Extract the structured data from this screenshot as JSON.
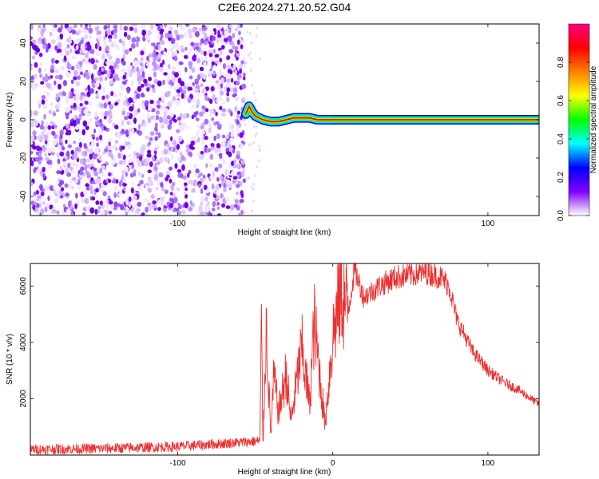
{
  "figure_title": "C2E6.2024.271.20.52.G04",
  "chart_data": [
    {
      "type": "heatmap",
      "name": "spectrogram",
      "xlabel": "Height of straight line (km)",
      "ylabel": "Frequency (Hz)",
      "xlim": [
        -195,
        133
      ],
      "ylim": [
        -50,
        50
      ],
      "x_ticks": [
        -100,
        100
      ],
      "y_ticks": [
        -40,
        -20,
        0,
        20,
        40
      ],
      "noise_region_x": [
        -195,
        -57
      ],
      "signal_start_x": -56,
      "carrier_frequency_hz": 0,
      "signal_trace": [
        {
          "x": -56,
          "y": 3
        },
        {
          "x": -54,
          "y": 7
        },
        {
          "x": -52,
          "y": 4
        },
        {
          "x": -50,
          "y": 2
        },
        {
          "x": -45,
          "y": 0
        },
        {
          "x": -40,
          "y": -1
        },
        {
          "x": -35,
          "y": -1
        },
        {
          "x": -30,
          "y": 0
        },
        {
          "x": -25,
          "y": 1
        },
        {
          "x": -20,
          "y": 1
        },
        {
          "x": -15,
          "y": 1
        },
        {
          "x": -10,
          "y": 0
        },
        {
          "x": 0,
          "y": 0
        },
        {
          "x": 133,
          "y": 0
        }
      ],
      "colorbar": {
        "label": "Normalized spectral amplitude",
        "range": [
          0,
          1
        ],
        "ticks": [
          0.0,
          0.2,
          0.4,
          0.6,
          0.8
        ],
        "tick_labels": [
          "0.0",
          "0.2",
          "0.4",
          "0.6",
          "0.8"
        ],
        "colors": [
          "#ffffff",
          "#8000ff",
          "#0000ff",
          "#00ffff",
          "#00ff00",
          "#ffff00",
          "#ff8000",
          "#ff0000",
          "#ff0080"
        ]
      },
      "noise_color": "#7f00ff",
      "trace_color": "#ff0000"
    },
    {
      "type": "line",
      "name": "snr",
      "xlabel": "Height of straight line (km)",
      "ylabel": "SNR (10 * v/v)",
      "xlim": [
        -195,
        133
      ],
      "ylim": [
        0,
        6800
      ],
      "x_ticks": [
        -100,
        0,
        100
      ],
      "y_ticks": [
        2000,
        4000,
        6000
      ],
      "color": "#ee3030",
      "series": [
        {
          "points": [
            {
              "x": -195,
              "y": 200
            },
            {
              "x": -150,
              "y": 230
            },
            {
              "x": -100,
              "y": 300
            },
            {
              "x": -60,
              "y": 450
            },
            {
              "x": -47,
              "y": 500
            },
            {
              "x": -46,
              "y": 4600
            },
            {
              "x": -45,
              "y": 300
            },
            {
              "x": -43,
              "y": 4600
            },
            {
              "x": -40,
              "y": 700
            },
            {
              "x": -38,
              "y": 2800
            },
            {
              "x": -35,
              "y": 1500
            },
            {
              "x": -30,
              "y": 2900
            },
            {
              "x": -27,
              "y": 1200
            },
            {
              "x": -20,
              "y": 3800
            },
            {
              "x": -15,
              "y": 1800
            },
            {
              "x": -12,
              "y": 4700
            },
            {
              "x": -5,
              "y": 1100
            },
            {
              "x": 0,
              "y": 4200
            },
            {
              "x": 5,
              "y": 5800
            },
            {
              "x": 10,
              "y": 5100
            },
            {
              "x": 14,
              "y": 6600
            },
            {
              "x": 20,
              "y": 5600
            },
            {
              "x": 30,
              "y": 6000
            },
            {
              "x": 40,
              "y": 6300
            },
            {
              "x": 50,
              "y": 6400
            },
            {
              "x": 60,
              "y": 6500
            },
            {
              "x": 70,
              "y": 6300
            },
            {
              "x": 75,
              "y": 6000
            },
            {
              "x": 80,
              "y": 4800
            },
            {
              "x": 90,
              "y": 3700
            },
            {
              "x": 100,
              "y": 3000
            },
            {
              "x": 110,
              "y": 2600
            },
            {
              "x": 120,
              "y": 2300
            },
            {
              "x": 133,
              "y": 1800
            }
          ]
        }
      ]
    }
  ]
}
